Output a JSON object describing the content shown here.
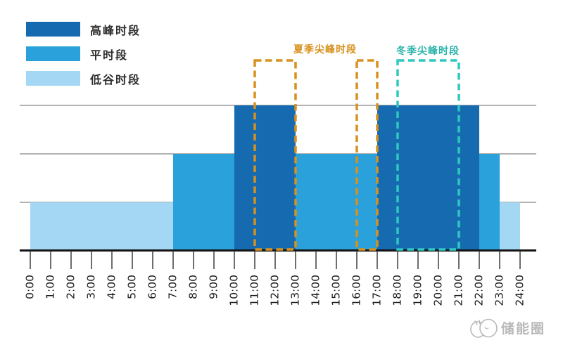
{
  "legend": {
    "items": [
      {
        "name": "peak",
        "label": "高峰时段",
        "color": "#166bb0"
      },
      {
        "name": "flat",
        "label": "平时段",
        "color": "#2ba1db"
      },
      {
        "name": "valley",
        "label": "低谷时段",
        "color": "#a4d7f4"
      }
    ]
  },
  "annotations": {
    "summer": {
      "label": "夏季尖峰时段",
      "label_color": "#d8911e",
      "box_color": "#d8911e",
      "boxes": [
        {
          "start_hour": 11,
          "end_hour": 13
        },
        {
          "start_hour": 16,
          "end_hour": 17
        }
      ]
    },
    "winter": {
      "label": "冬季尖峰时段",
      "label_color": "#2ab3ab",
      "box_color": "#2fc8c0",
      "boxes": [
        {
          "start_hour": 18,
          "end_hour": 21
        }
      ]
    }
  },
  "watermark": {
    "text": "储能圈"
  },
  "style": {
    "gridline_color": "#b2b2b2",
    "axis_color": "#141414",
    "tick_color": "#3d3d3d",
    "tick_label_color": "#1a1a1a",
    "watermark_color": "#b9b9b9"
  },
  "chart_data": {
    "type": "bar",
    "x_range_hours": [
      0,
      24
    ],
    "x_tick_labels": [
      "0:00",
      "1:00",
      "2:00",
      "3:00",
      "4:00",
      "5:00",
      "6:00",
      "7:00",
      "8:00",
      "9:00",
      "10:00",
      "11:00",
      "12:00",
      "13:00",
      "14:00",
      "15:00",
      "16:00",
      "17:00",
      "18:00",
      "19:00",
      "20:00",
      "21:00",
      "22:00",
      "23:00",
      "24:00"
    ],
    "ylim": [
      0,
      3
    ],
    "gridlines_y": [
      1,
      2,
      3
    ],
    "y_levels": {
      "valley": 1,
      "flat": 2,
      "peak": 3
    },
    "series_colors": {
      "peak": "#166bb0",
      "flat": "#2ba1db",
      "valley": "#a4d7f4"
    },
    "segments": [
      {
        "start_hour": 0,
        "end_hour": 7,
        "period": "valley"
      },
      {
        "start_hour": 7,
        "end_hour": 10,
        "period": "flat"
      },
      {
        "start_hour": 10,
        "end_hour": 13,
        "period": "peak"
      },
      {
        "start_hour": 13,
        "end_hour": 17,
        "period": "flat"
      },
      {
        "start_hour": 17,
        "end_hour": 22,
        "period": "peak"
      },
      {
        "start_hour": 22,
        "end_hour": 23,
        "period": "flat"
      },
      {
        "start_hour": 23,
        "end_hour": 24,
        "period": "valley"
      }
    ]
  }
}
